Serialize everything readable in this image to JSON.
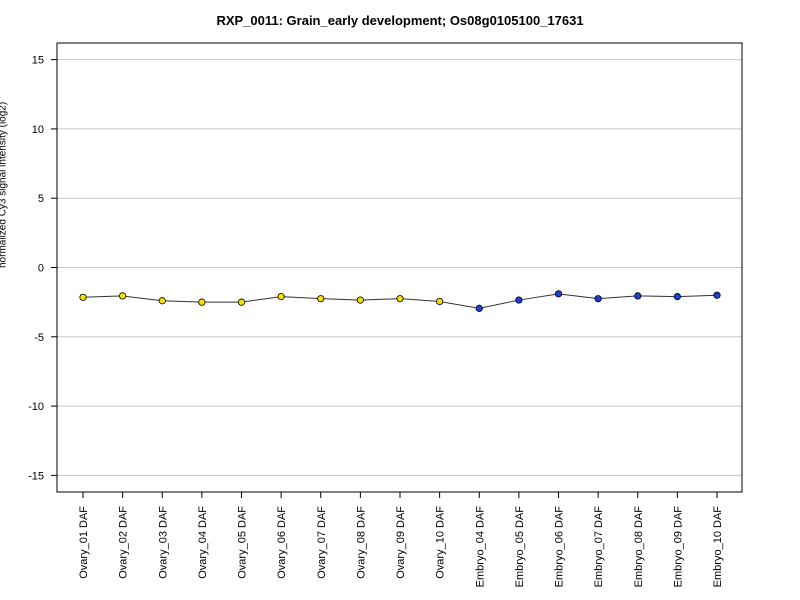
{
  "chart_data": {
    "type": "line",
    "title": "RXP_0011: Grain_early development; Os08g0105100_17631",
    "xlabel": "",
    "ylabel": "normalized Cy3 signal intensity (log2)",
    "ylim": [
      -16.2,
      16.2
    ],
    "yticks": [
      -15,
      -10,
      -5,
      0,
      5,
      10,
      15
    ],
    "grid": true,
    "categories": [
      "Ovary_01 DAF",
      "Ovary_02 DAF",
      "Ovary_03 DAF",
      "Ovary_04 DAF",
      "Ovary_05 DAF",
      "Ovary_06 DAF",
      "Ovary_07 DAF",
      "Ovary_08 DAF",
      "Ovary_09 DAF",
      "Ovary_10 DAF",
      "Embryo_04 DAF",
      "Embryo_05 DAF",
      "Embryo_06 DAF",
      "Embryo_07 DAF",
      "Embryo_08 DAF",
      "Embryo_09 DAF",
      "Embryo_10 DAF"
    ],
    "series": [
      {
        "values": [
          -2.15,
          -2.05,
          -2.4,
          -2.5,
          -2.5,
          -2.1,
          -2.25,
          -2.35,
          -2.25,
          -2.45,
          -2.95,
          -2.35,
          -1.9,
          -2.25,
          -2.05,
          -2.1,
          -2.0
        ],
        "errors": [
          0.08,
          0.2,
          0.1,
          0.07,
          0.07,
          0.08,
          0.08,
          0.08,
          0.08,
          0.07,
          0.06,
          0.07,
          0.06,
          0.08,
          0.06,
          0.06,
          0.05
        ],
        "point_colors": [
          "#f5e100",
          "#f5e100",
          "#f5e100",
          "#f5e100",
          "#f5e100",
          "#f5e100",
          "#f5e100",
          "#f5e100",
          "#f5e100",
          "#f5e100",
          "#1f3fd8",
          "#1f3fd8",
          "#1f3fd8",
          "#1f3fd8",
          "#1f3fd8",
          "#1f3fd8",
          "#1f3fd8"
        ]
      }
    ],
    "colors": {
      "ovary": "#f5e100",
      "embryo": "#1f3fd8",
      "line": "#333333",
      "grid": "#c8c8c8"
    }
  }
}
